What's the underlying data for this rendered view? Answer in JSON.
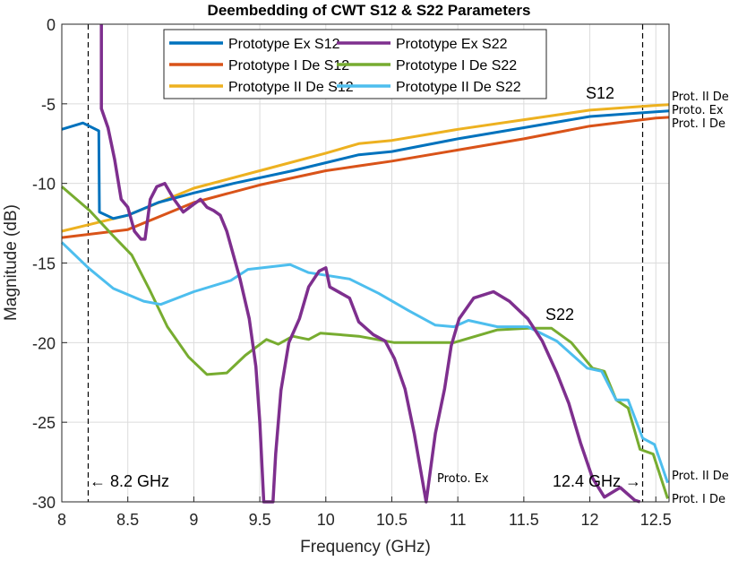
{
  "chart_data": {
    "type": "line",
    "title": "Deembedding of CWT S12 & S22 Parameters",
    "xlabel": "Frequency (GHz)",
    "ylabel": "Magnitude (dB)",
    "xlim": [
      8,
      12.6
    ],
    "ylim": [
      -30,
      0
    ],
    "xticks": [
      8,
      8.5,
      9,
      9.5,
      10,
      10.5,
      11,
      11.5,
      12,
      12.5
    ],
    "xtick_labels": [
      "8",
      "8.5",
      "9",
      "9.5",
      "10",
      "10.5",
      "11",
      "11.5",
      "12",
      "12.5"
    ],
    "yticks": [
      0,
      -5,
      -10,
      -15,
      -20,
      -25,
      -30
    ],
    "ytick_labels": [
      "0",
      "-5",
      "-10",
      "-15",
      "-20",
      "-25",
      "-30"
    ],
    "grid": true,
    "legend_placement": "top-center",
    "series": [
      {
        "name": "Prototype Ex S12",
        "color": "#0072BD",
        "x": [
          8,
          8.16,
          8.28,
          8.285,
          8.39,
          8.5,
          8.73,
          9,
          9.3,
          9.75,
          10.25,
          10.5,
          11,
          11.5,
          12,
          12.5,
          12.6
        ],
        "y": [
          -6.6,
          -6.2,
          -6.7,
          -11.8,
          -12.2,
          -12,
          -11.2,
          -10.6,
          -10,
          -9.2,
          -8.2,
          -8,
          -7.2,
          -6.5,
          -5.8,
          -5.5,
          -5.45
        ]
      },
      {
        "name": "Prototype I De S12",
        "color": "#D95319",
        "x": [
          8,
          8.5,
          9,
          9.5,
          10,
          10.25,
          10.5,
          11,
          11.5,
          12,
          12.5,
          12.6
        ],
        "y": [
          -13.4,
          -12.9,
          -11.2,
          -10.1,
          -9.2,
          -8.9,
          -8.6,
          -7.9,
          -7.2,
          -6.4,
          -5.9,
          -5.85
        ]
      },
      {
        "name": "Prototype II De S12",
        "color": "#EDB120",
        "x": [
          8,
          8.5,
          9,
          9.5,
          10,
          10.25,
          10.5,
          11,
          11.5,
          12,
          12.5,
          12.6
        ],
        "y": [
          -13,
          -12,
          -10.3,
          -9.2,
          -8.1,
          -7.5,
          -7.3,
          -6.6,
          -6,
          -5.4,
          -5.1,
          -5.05
        ]
      },
      {
        "name": "Prototype Ex S22",
        "color": "#7E2F8E",
        "x": [
          8.3,
          8.3,
          8.35,
          8.4,
          8.45,
          8.5,
          8.55,
          8.6,
          8.63,
          8.67,
          8.72,
          8.78,
          8.85,
          8.92,
          9,
          9.05,
          9.1,
          9.15,
          9.2,
          9.25,
          9.3,
          9.35,
          9.42,
          9.47,
          9.5,
          9.53,
          9.6,
          9.62,
          9.66,
          9.72,
          9.8,
          9.87,
          9.95,
          10,
          10.03,
          10.18,
          10.25,
          10.36,
          10.45,
          10.52,
          10.6,
          10.67,
          10.76,
          10.83,
          10.9,
          10.95,
          11.01,
          11.12,
          11.27,
          11.39,
          11.53,
          11.64,
          11.75,
          11.84,
          11.93,
          12.02,
          12.11,
          12.23,
          12.34,
          12.38
        ],
        "y": [
          0,
          -5.3,
          -6.5,
          -8.5,
          -11,
          -11.5,
          -13,
          -13.5,
          -13.5,
          -11,
          -10.2,
          -10,
          -11,
          -11.8,
          -11.3,
          -11,
          -11.5,
          -11.7,
          -12,
          -13,
          -14.5,
          -16,
          -18.5,
          -21.5,
          -25,
          -30,
          -30,
          -27,
          -23,
          -20,
          -18.5,
          -16.5,
          -15.5,
          -15.3,
          -16.5,
          -17.2,
          -18.7,
          -19.5,
          -19.9,
          -21,
          -22.9,
          -25.7,
          -30,
          -25.7,
          -22.9,
          -20.2,
          -18.5,
          -17.2,
          -16.8,
          -17.4,
          -18.5,
          -19.9,
          -21.9,
          -23.8,
          -26.3,
          -28.5,
          -29.7,
          -29.1,
          -29.9,
          -30
        ]
      },
      {
        "name": "Prototype I De S22",
        "color": "#77AC30",
        "x": [
          8,
          8.21,
          8.39,
          8.53,
          8.66,
          8.8,
          8.96,
          9.1,
          9.25,
          9.39,
          9.55,
          9.64,
          9.75,
          9.87,
          9.96,
          10.25,
          10.52,
          10.81,
          10.97,
          11.3,
          11.53,
          11.71,
          11.86,
          12.02,
          12.11,
          12.2,
          12.29,
          12.38,
          12.48,
          12.59
        ],
        "y": [
          -10.2,
          -11.7,
          -13.3,
          -14.5,
          -16.6,
          -19,
          -20.9,
          -22,
          -21.9,
          -20.8,
          -19.8,
          -20.1,
          -19.6,
          -19.8,
          -19.4,
          -19.6,
          -20,
          -20,
          -20,
          -19.2,
          -19.1,
          -19.1,
          -20,
          -21.6,
          -21.8,
          -23.6,
          -24.1,
          -26.7,
          -27,
          -29.8
        ]
      },
      {
        "name": "Prototype II De S22",
        "color": "#4DBEEE",
        "x": [
          8,
          8.2,
          8.39,
          8.62,
          8.75,
          9,
          9.28,
          9.41,
          9.73,
          9.87,
          10.18,
          10.4,
          10.63,
          10.83,
          10.97,
          11.08,
          11.3,
          11.53,
          11.75,
          11.98,
          12.09,
          12.2,
          12.29,
          12.4,
          12.49,
          12.59
        ],
        "y": [
          -13.7,
          -15.3,
          -16.6,
          -17.4,
          -17.6,
          -16.8,
          -16.1,
          -15.4,
          -15.1,
          -15.6,
          -16,
          -16.9,
          -18,
          -18.9,
          -19,
          -18.6,
          -19,
          -19,
          -19.9,
          -21.6,
          -21.8,
          -23.6,
          -23.6,
          -26,
          -26.4,
          -28.8
        ]
      }
    ],
    "markers": [
      {
        "x": 8.2,
        "label": "← 8.2 GHz"
      },
      {
        "x": 12.4,
        "label": "12.4 GHz →"
      }
    ],
    "annotations": {
      "s12": "S12",
      "s22": "S22",
      "s12_ii": "Prot. II De",
      "s12_ex": "Proto. Ex",
      "s12_i": "Prot. I De",
      "s22_ex": "Proto. Ex",
      "s22_ii": "Prot. II De",
      "s22_i": "Prot. I De"
    }
  }
}
